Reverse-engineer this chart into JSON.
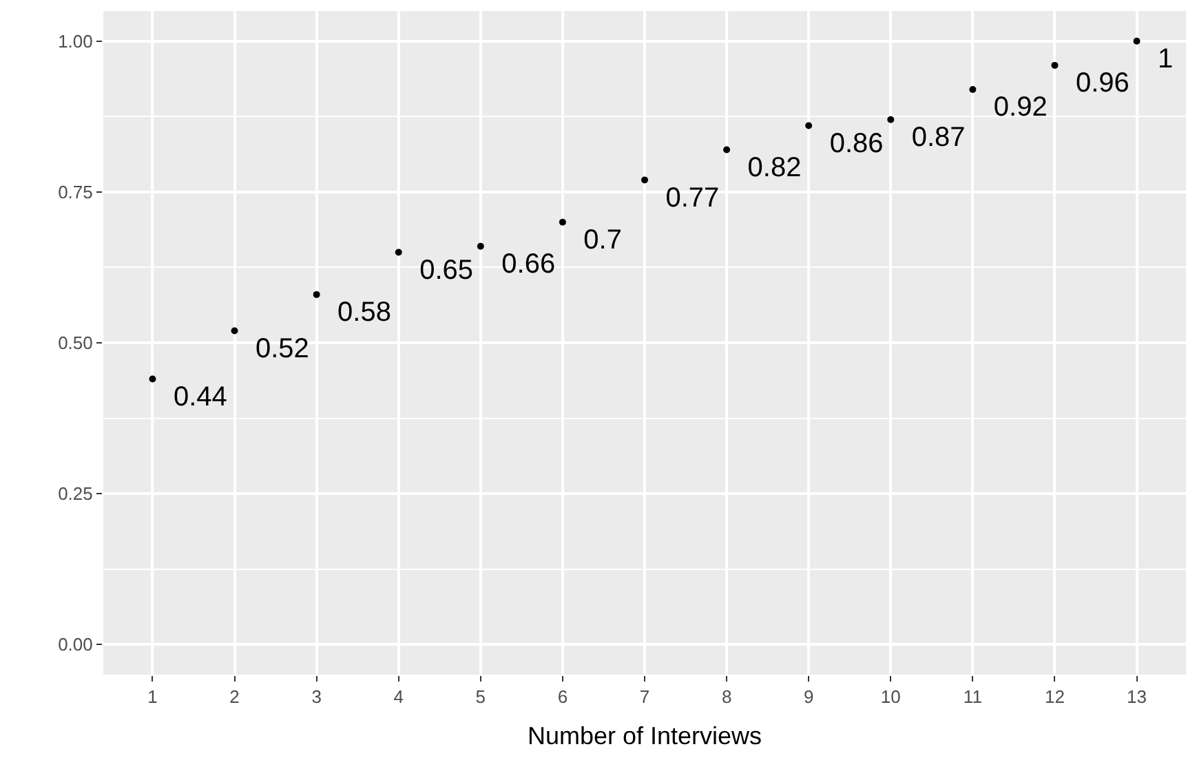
{
  "chart_data": {
    "type": "scatter",
    "xlabel": "Number of Interviews",
    "x": [
      1,
      2,
      3,
      4,
      5,
      6,
      7,
      8,
      9,
      10,
      11,
      12,
      13
    ],
    "values": [
      0.44,
      0.52,
      0.58,
      0.65,
      0.66,
      0.7,
      0.77,
      0.82,
      0.86,
      0.87,
      0.92,
      0.96,
      1
    ],
    "color": "#000000",
    "marker": "circle",
    "data_labels": true,
    "grid": true,
    "legend": false,
    "xlim": [
      0.4,
      13.6
    ],
    "xticks": [
      1,
      2,
      3,
      4,
      5,
      6,
      7,
      8,
      9,
      10,
      11,
      12,
      13
    ],
    "ylim": [
      -0.05,
      1.05
    ],
    "yticks": [
      {
        "value": 0,
        "label": "0.00"
      },
      {
        "value": 0.25,
        "label": "0.25"
      },
      {
        "value": 0.5,
        "label": "0.50"
      },
      {
        "value": 0.75,
        "label": "0.75"
      },
      {
        "value": 1,
        "label": "1.00"
      }
    ]
  }
}
